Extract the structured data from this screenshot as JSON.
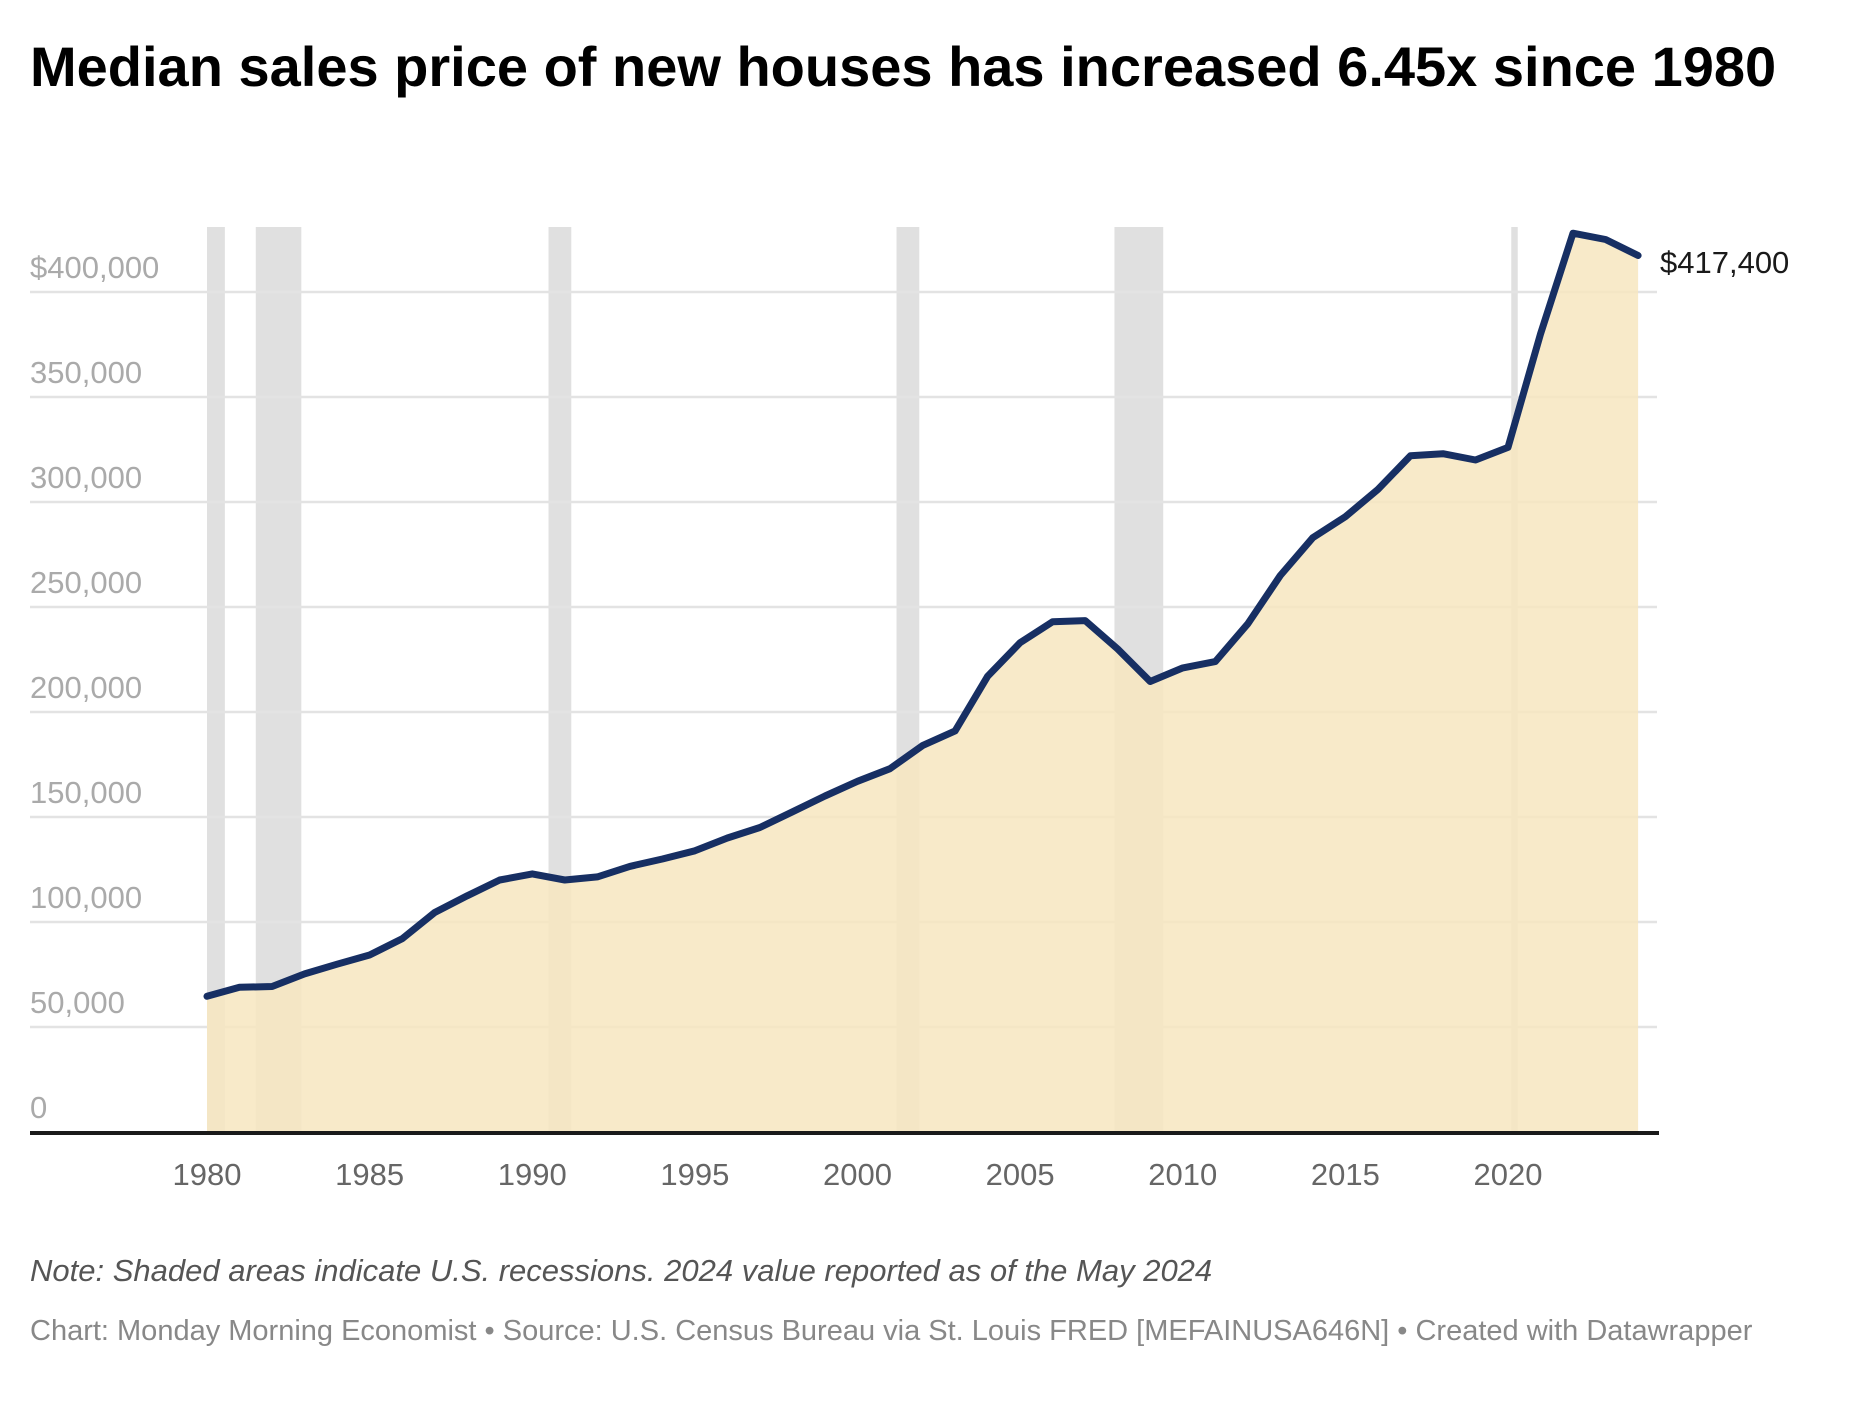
{
  "chart_data": {
    "type": "area",
    "title": "Median sales price of new houses has increased 6.45x since 1980",
    "xlabel": "",
    "ylabel": "",
    "xlim": [
      1980,
      2024
    ],
    "ylim": [
      0,
      400000
    ],
    "grid": true,
    "x_ticks": [
      "1980",
      "1985",
      "1990",
      "1995",
      "2000",
      "2005",
      "2010",
      "2015",
      "2020"
    ],
    "x_tick_values": [
      1980,
      1985,
      1990,
      1995,
      2000,
      2005,
      2010,
      2015,
      2020
    ],
    "y_ticks": [
      "0",
      "50,000",
      "100,000",
      "150,000",
      "200,000",
      "250,000",
      "300,000",
      "350,000",
      "$400,000"
    ],
    "y_tick_values": [
      0,
      50000,
      100000,
      150000,
      200000,
      250000,
      300000,
      350000,
      400000
    ],
    "x": [
      1980,
      1981,
      1982,
      1983,
      1984,
      1985,
      1986,
      1987,
      1988,
      1989,
      1990,
      1991,
      1992,
      1993,
      1994,
      1995,
      1996,
      1997,
      1998,
      1999,
      2000,
      2001,
      2002,
      2003,
      2004,
      2005,
      2006,
      2007,
      2008,
      2009,
      2010,
      2011,
      2012,
      2013,
      2014,
      2015,
      2016,
      2017,
      2018,
      2019,
      2020,
      2021,
      2022,
      2023,
      2024
    ],
    "series": [
      {
        "name": "Median sales price of new houses",
        "color": "#172f63",
        "fill": "#f7e6c0",
        "values": [
          64600,
          68900,
          69300,
          75300,
          79900,
          84300,
          92000,
          104500,
          112500,
          120000,
          122900,
          120000,
          121500,
          126500,
          130000,
          133900,
          140000,
          145000,
          152500,
          160000,
          167000,
          173000,
          184000,
          191000,
          217000,
          233000,
          243000,
          243500,
          230000,
          214500,
          221000,
          224000,
          242000,
          265000,
          283000,
          293000,
          306000,
          322000,
          323000,
          320000,
          326000,
          380000,
          428000,
          425000,
          417400
        ]
      }
    ],
    "end_label": "$417,400",
    "recessions": [
      [
        1980.0,
        1980.55
      ],
      [
        1981.5,
        1982.9
      ],
      [
        1990.5,
        1991.2
      ],
      [
        2001.2,
        2001.9
      ],
      [
        2007.9,
        2009.4
      ],
      [
        2020.1,
        2020.3
      ]
    ]
  },
  "note": "Note: Shaded areas indicate U.S. recessions. 2024 value reported as of the May 2024",
  "credit": "Chart: Monday Morning Economist • Source: U.S. Census Bureau via St. Louis FRED [MEFAINUSA646N] • Created with Datawrapper"
}
